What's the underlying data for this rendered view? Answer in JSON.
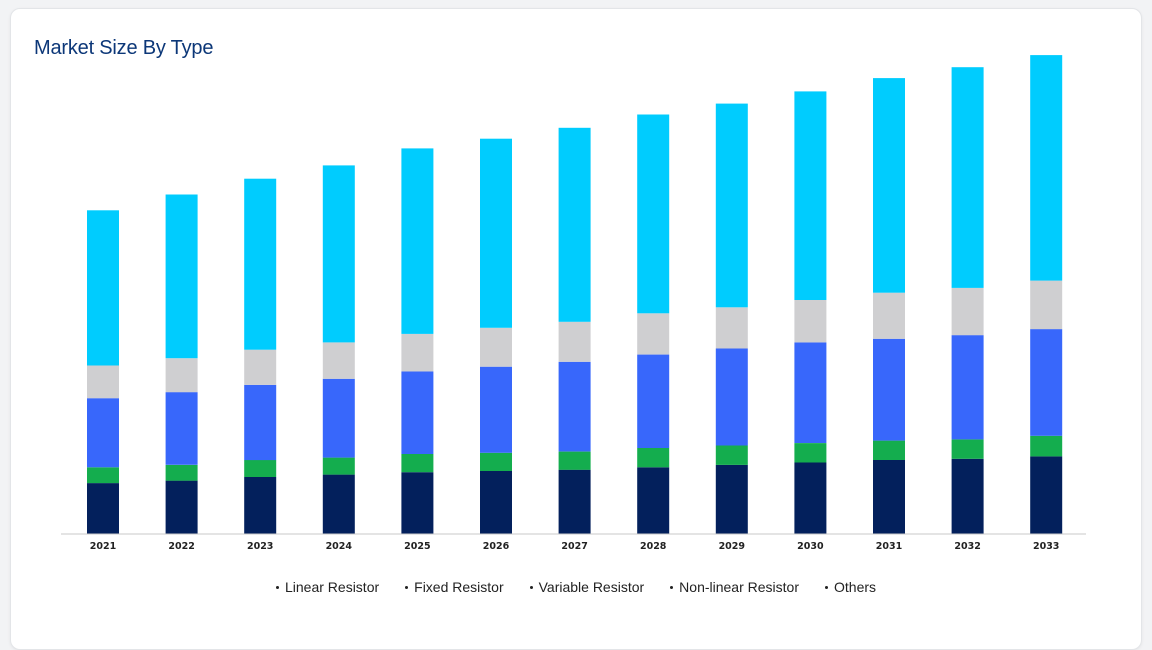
{
  "page": {
    "title": "Market Size By Type"
  },
  "chart_data": {
    "type": "bar",
    "stacked": true,
    "title": "Market Size By Type",
    "xlabel": "",
    "ylabel": "",
    "categories": [
      "2021",
      "2022",
      "2023",
      "2024",
      "2025",
      "2026",
      "2027",
      "2028",
      "2029",
      "2030",
      "2031",
      "2032",
      "2033"
    ],
    "ylim": [
      0,
      400
    ],
    "grid": false,
    "y_axis_labels_shown": false,
    "legend_position": "bottom",
    "series": [
      {
        "name": "Linear Resistor",
        "color": "#03205c",
        "values": [
          42,
          44,
          47,
          49,
          51,
          52,
          53,
          55,
          57,
          59,
          61,
          62,
          64
        ]
      },
      {
        "name": "Fixed Resistor",
        "color": "#14ad4e",
        "values": [
          13,
          13,
          14,
          14,
          15,
          15,
          15,
          16,
          16,
          16,
          16,
          16,
          17
        ]
      },
      {
        "name": "Variable Resistor",
        "color": "#3867fb",
        "values": [
          57,
          60,
          62,
          65,
          68,
          71,
          74,
          77,
          80,
          83,
          84,
          86,
          88
        ]
      },
      {
        "name": "Non-linear Resistor",
        "color": "#cfcfd1",
        "values": [
          27,
          28,
          29,
          30,
          31,
          32,
          33,
          34,
          34,
          35,
          38,
          39,
          40
        ]
      },
      {
        "name": "Others",
        "color": "#00ccfe",
        "values": [
          128,
          135,
          141,
          146,
          153,
          156,
          160,
          164,
          168,
          172,
          177,
          182,
          186
        ]
      }
    ]
  }
}
